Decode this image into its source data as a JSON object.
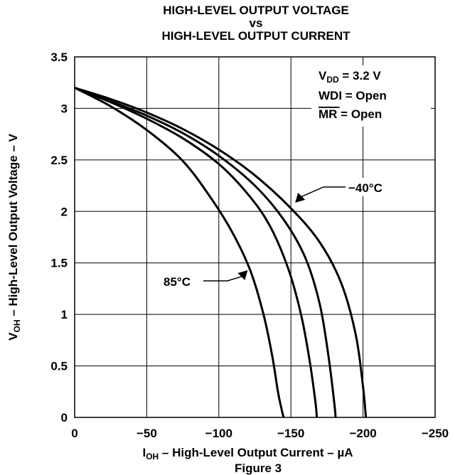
{
  "chart_data": {
    "type": "line",
    "title_lines": [
      "HIGH-LEVEL OUTPUT VOLTAGE",
      "vs",
      "HIGH-LEVEL OUTPUT CURRENT"
    ],
    "xlabel": {
      "main": "I",
      "sub": "OH",
      "rest": " – High-Level Output Current – µA"
    },
    "ylabel": {
      "main": "V",
      "sub": "OH",
      "rest": " – High-Level Output Voltage – V"
    },
    "xlim": [
      0,
      -250
    ],
    "ylim": [
      0,
      3.5
    ],
    "xticks": [
      0,
      -50,
      -100,
      -150,
      -200,
      -250
    ],
    "xtick_labels": [
      "0",
      "−50",
      "−100",
      "−150",
      "−200",
      "−250"
    ],
    "yticks": [
      0,
      0.5,
      1,
      1.5,
      2,
      2.5,
      3,
      3.5
    ],
    "ytick_labels": [
      "0",
      "0.5",
      "1",
      "1.5",
      "2",
      "2.5",
      "3",
      "3.5"
    ],
    "grid": true,
    "conditions": {
      "vdd": {
        "main": "V",
        "sub": "DD",
        "rest": " = 3.2 V"
      },
      "wdi": "WDI = Open",
      "mr": {
        "overlined": "MR",
        "rest": " = Open"
      }
    },
    "annotations": [
      {
        "text": "−40°C",
        "series": "-40°C"
      },
      {
        "text": "85°C",
        "series": "85°C"
      }
    ],
    "series": [
      {
        "name": "-40°C",
        "x": [
          0,
          -25,
          -50,
          -75,
          -100,
          -125,
          -150,
          -170,
          -185,
          -195,
          -200,
          -202
        ],
        "y": [
          3.2,
          3.09,
          2.96,
          2.8,
          2.6,
          2.35,
          2.03,
          1.7,
          1.3,
          0.8,
          0.3,
          0
        ]
      },
      {
        "name": "",
        "x": [
          0,
          -25,
          -50,
          -75,
          -100,
          -125,
          -145,
          -160,
          -170,
          -176,
          -180,
          -181
        ],
        "y": [
          3.2,
          3.07,
          2.93,
          2.76,
          2.54,
          2.25,
          1.92,
          1.55,
          1.1,
          0.6,
          0.15,
          0
        ]
      },
      {
        "name": "",
        "x": [
          0,
          -25,
          -50,
          -75,
          -100,
          -120,
          -135,
          -148,
          -157,
          -163,
          -167,
          -168
        ],
        "y": [
          3.2,
          3.06,
          2.9,
          2.71,
          2.46,
          2.17,
          1.87,
          1.45,
          1.0,
          0.55,
          0.15,
          0
        ]
      },
      {
        "name": "85°C",
        "x": [
          0,
          -25,
          -50,
          -75,
          -95,
          -110,
          -122,
          -131,
          -137,
          -141,
          -144,
          -145
        ],
        "y": [
          3.2,
          3.02,
          2.79,
          2.49,
          2.12,
          1.78,
          1.42,
          1.0,
          0.6,
          0.25,
          0.05,
          0
        ]
      }
    ]
  },
  "caption": "Figure 3"
}
